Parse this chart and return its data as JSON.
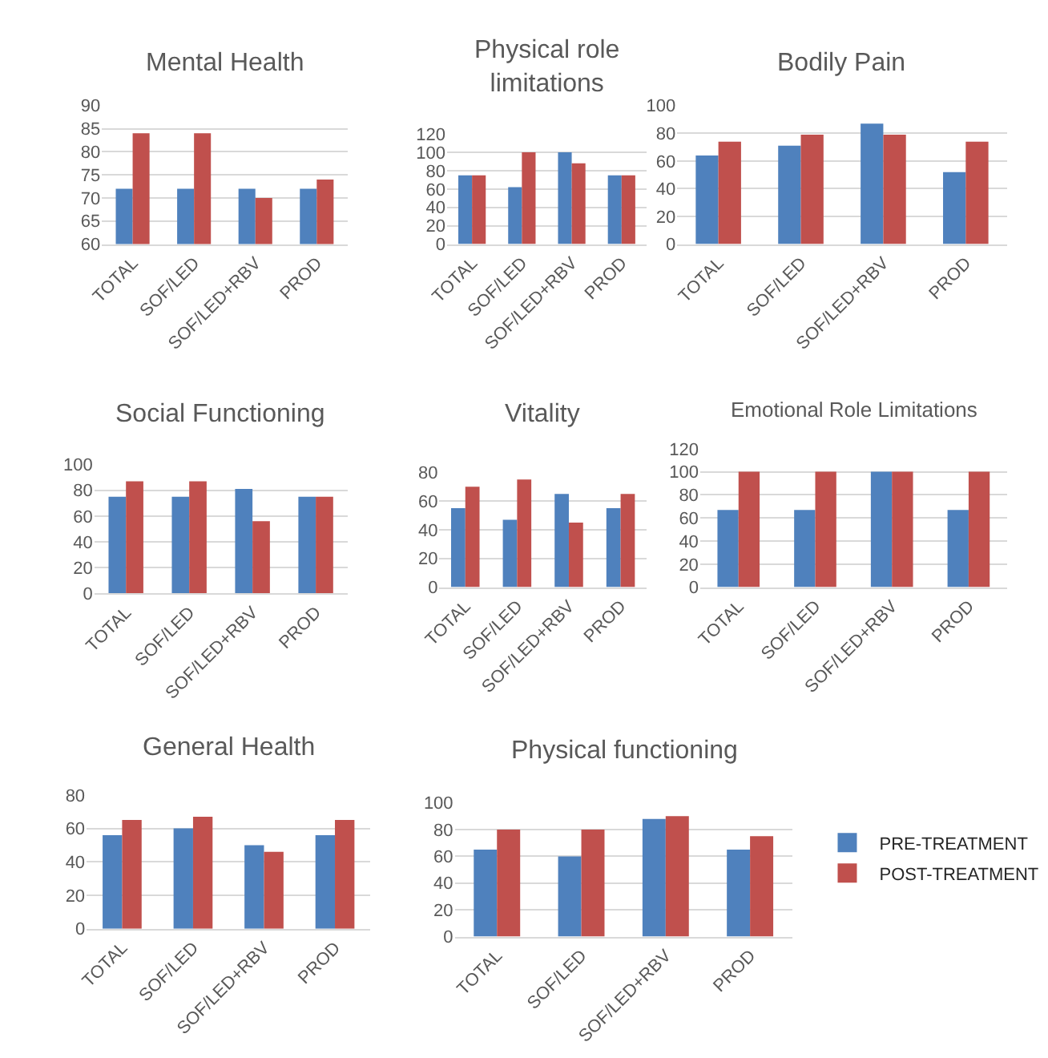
{
  "chart_data": [
    {
      "type": "bar",
      "title": "Mental Health",
      "categories": [
        "TOTAL",
        "SOF/LED",
        "SOF/LED+RBV",
        "PROD"
      ],
      "ylim": [
        60,
        90
      ],
      "yticks": [
        60,
        65,
        70,
        75,
        80,
        85,
        90
      ],
      "grid": "y",
      "series": [
        {
          "color": "#4f81bd",
          "values": [
            72,
            72,
            72,
            72
          ]
        },
        {
          "color": "#c0504d",
          "values": [
            84,
            84,
            70,
            74
          ]
        }
      ]
    },
    {
      "type": "bar",
      "title": "Physical role limitations",
      "categories": [
        "TOTAL",
        "SOF/LED",
        "SOF/LED+RBV",
        "PROD"
      ],
      "ylim": [
        0,
        120
      ],
      "yticks": [
        0,
        20,
        40,
        60,
        80,
        100,
        120
      ],
      "grid": "y",
      "series": [
        {
          "color": "#4f81bd",
          "values": [
            75,
            62,
            100,
            75
          ]
        },
        {
          "color": "#c0504d",
          "values": [
            75,
            100,
            88,
            75
          ]
        }
      ]
    },
    {
      "type": "bar",
      "title": "Bodily Pain",
      "categories": [
        "TOTAL",
        "SOF/LED",
        "SOF/LED+RBV",
        "PROD"
      ],
      "ylim": [
        0,
        100
      ],
      "yticks": [
        0,
        20,
        40,
        60,
        80,
        100
      ],
      "grid": "y",
      "series": [
        {
          "color": "#4f81bd",
          "values": [
            64,
            71,
            87,
            52
          ]
        },
        {
          "color": "#c0504d",
          "values": [
            74,
            79,
            79,
            74
          ]
        }
      ]
    },
    {
      "type": "bar",
      "title": "Social Functioning",
      "categories": [
        "TOTAL",
        "SOF/LED",
        "SOF/LED+RBV",
        "PROD"
      ],
      "ylim": [
        0,
        100
      ],
      "yticks": [
        0,
        20,
        40,
        60,
        80,
        100
      ],
      "grid": "y",
      "series": [
        {
          "color": "#4f81bd",
          "values": [
            75,
            75,
            81,
            75
          ]
        },
        {
          "color": "#c0504d",
          "values": [
            87,
            87,
            56,
            75
          ]
        }
      ]
    },
    {
      "type": "bar",
      "title": "Vitality",
      "categories": [
        "TOTAL",
        "SOF/LED",
        "SOF/LED+RBV",
        "PROD"
      ],
      "ylim": [
        0,
        80
      ],
      "yticks": [
        0,
        20,
        40,
        60,
        80
      ],
      "grid": "y",
      "series": [
        {
          "color": "#4f81bd",
          "values": [
            55,
            47,
            65,
            55
          ]
        },
        {
          "color": "#c0504d",
          "values": [
            70,
            75,
            45,
            65
          ]
        }
      ]
    },
    {
      "type": "bar",
      "title": "Emotional Role Limitations",
      "categories": [
        "TOTAL",
        "SOF/LED",
        "SOF/LED+RBV",
        "PROD"
      ],
      "ylim": [
        0,
        120
      ],
      "yticks": [
        0,
        20,
        40,
        60,
        80,
        100,
        120
      ],
      "grid": "y",
      "series": [
        {
          "color": "#4f81bd",
          "values": [
            67,
            67,
            100,
            67
          ]
        },
        {
          "color": "#c0504d",
          "values": [
            100,
            100,
            100,
            100
          ]
        }
      ]
    },
    {
      "type": "bar",
      "title": "General Health",
      "categories": [
        "TOTAL",
        "SOF/LED",
        "SOF/LED+RBV",
        "PROD"
      ],
      "ylim": [
        0,
        80
      ],
      "yticks": [
        0,
        20,
        40,
        60,
        80
      ],
      "grid": "y",
      "series": [
        {
          "color": "#4f81bd",
          "values": [
            56,
            60,
            50,
            56
          ]
        },
        {
          "color": "#c0504d",
          "values": [
            65,
            67,
            46,
            65
          ]
        }
      ]
    },
    {
      "type": "bar",
      "title": "Physical functioning",
      "categories": [
        "TOTAL",
        "SOF/LED",
        "SOF/LED+RBV",
        "PROD"
      ],
      "ylim": [
        0,
        100
      ],
      "yticks": [
        0,
        20,
        40,
        60,
        80,
        100
      ],
      "grid": "y",
      "legend": "right",
      "series": [
        {
          "name": "PRE-TREATMENT",
          "color": "#4f81bd",
          "values": [
            65,
            60,
            88,
            65
          ]
        },
        {
          "name": "POST-TREATMENT",
          "color": "#c0504d",
          "values": [
            80,
            80,
            90,
            75
          ]
        }
      ]
    }
  ]
}
